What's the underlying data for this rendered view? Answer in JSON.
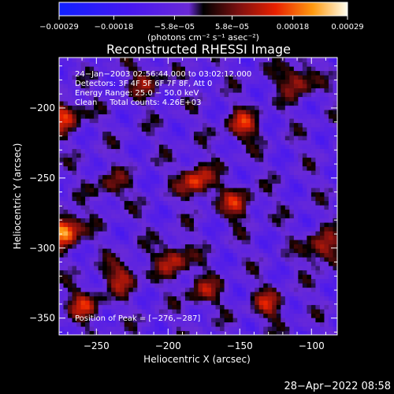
{
  "chart_data": {
    "type": "heatmap",
    "title": "Reconstructed RHESSI Image",
    "xlabel": "Heliocentric X (arcsec)",
    "ylabel": "Heliocentric Y (arcsec)",
    "xlim": [
      -276,
      -82
    ],
    "ylim": [
      -362,
      -164
    ],
    "x_ticks": [
      -250,
      -200,
      -150,
      -100
    ],
    "x_tick_labels": [
      "−250",
      "−200",
      "−150",
      "−100"
    ],
    "y_ticks": [
      -350,
      -300,
      -250,
      -200
    ],
    "y_tick_labels": [
      "−350",
      "−300",
      "−250",
      "−200"
    ],
    "colorbar": {
      "range": [
        -0.00029,
        0.00029
      ],
      "ticks": [
        -0.00029,
        -0.00018,
        -5.8e-05,
        5.8e-05,
        0.00018,
        0.00029
      ],
      "tick_labels": [
        "−0.00029",
        "−0.00018",
        "−5.8e−05",
        "5.8e−05",
        "0.00018",
        "0.00029"
      ],
      "unit_label": "(photons cm⁻² s⁻¹ asec⁻²)"
    },
    "annotations": [
      "24−Jan−2003 02:56:44.000 to 03:02:12.000",
      "Detectors: 3F 4F 5F 6F 7F 8F, Att 0",
      "Energy Range: 25.0 − 50.0 keV",
      "Clean     Total counts: 4.26E+03"
    ],
    "peak_label": "Position of Peak = [−276,−287]",
    "peak": [
      -276,
      -287
    ],
    "hotspots": [
      {
        "x": -272,
        "y": -287,
        "value": 0.00029
      },
      {
        "x": -272,
        "y": -205,
        "value": 0.0002
      },
      {
        "x": -180,
        "y": -252,
        "value": 0.00022
      },
      {
        "x": -196,
        "y": -308,
        "value": 0.00018
      },
      {
        "x": -232,
        "y": -320,
        "value": 0.00016
      },
      {
        "x": -152,
        "y": -268,
        "value": 0.00016
      },
      {
        "x": -148,
        "y": -212,
        "value": 0.00017
      },
      {
        "x": -110,
        "y": -180,
        "value": 0.00018
      },
      {
        "x": -92,
        "y": -300,
        "value": 0.00019
      },
      {
        "x": -258,
        "y": -340,
        "value": 0.00016
      },
      {
        "x": -176,
        "y": -330,
        "value": 0.00013
      },
      {
        "x": -130,
        "y": -340,
        "value": 0.00014
      },
      {
        "x": -215,
        "y": -180,
        "value": 0.00012
      },
      {
        "x": -240,
        "y": -255,
        "value": 0.00011
      }
    ]
  },
  "footer": {
    "timestamp": "28−Apr−2022 08:58"
  }
}
